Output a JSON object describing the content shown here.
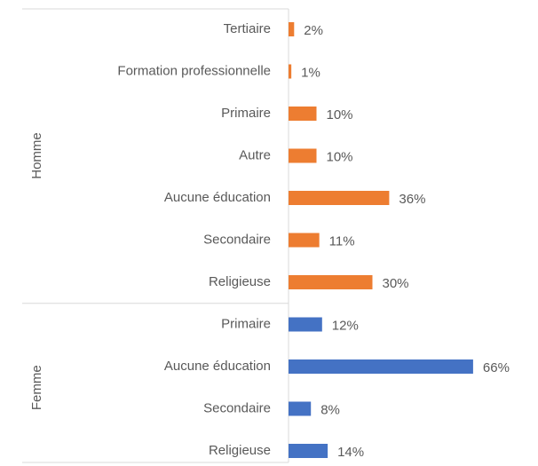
{
  "chart_data": {
    "type": "bar",
    "orientation": "horizontal",
    "series": [
      {
        "name": "Homme",
        "color": "#ed7d31",
        "categories": [
          "Tertiaire",
          "Formation professionnelle",
          "Primaire",
          "Autre",
          "Aucune éducation",
          "Secondaire",
          "Religieuse"
        ],
        "values": [
          2,
          1,
          10,
          10,
          36,
          11,
          30
        ],
        "value_labels": [
          "2%",
          "1%",
          "10%",
          "10%",
          "36%",
          "11%",
          "30%"
        ]
      },
      {
        "name": "Femme",
        "color": "#4472c4",
        "categories": [
          "Primaire",
          "Aucune éducation",
          "Secondaire",
          "Religieuse"
        ],
        "values": [
          12,
          66,
          8,
          14
        ],
        "value_labels": [
          "12%",
          "66%",
          "8%",
          "14%"
        ]
      }
    ]
  }
}
